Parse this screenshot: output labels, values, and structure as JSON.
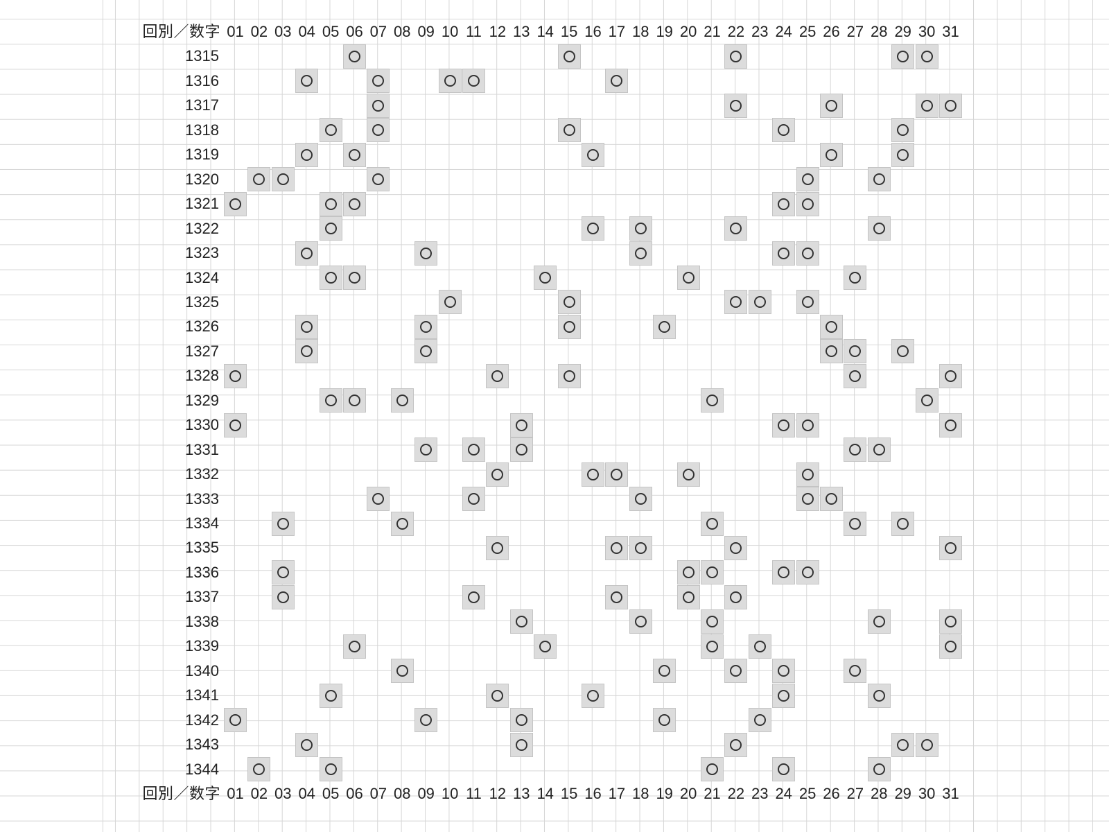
{
  "sheet": {
    "header_label": "回別／数字",
    "footer_label": "回別／数字",
    "columns": [
      "01",
      "02",
      "03",
      "04",
      "05",
      "06",
      "07",
      "08",
      "09",
      "10",
      "11",
      "12",
      "13",
      "14",
      "15",
      "16",
      "17",
      "18",
      "19",
      "20",
      "21",
      "22",
      "23",
      "24",
      "25",
      "26",
      "27",
      "28",
      "29",
      "30",
      "31"
    ],
    "mark_symbol": "circle",
    "colors": {
      "grid": "#d6d6d6",
      "marked_cell": "#dcdcdc",
      "mark": "#333333",
      "text": "#222222"
    },
    "rows": [
      {
        "draw": "1315",
        "numbers": [
          "06",
          "15",
          "22",
          "29",
          "30"
        ]
      },
      {
        "draw": "1316",
        "numbers": [
          "04",
          "07",
          "10",
          "11",
          "17"
        ]
      },
      {
        "draw": "1317",
        "numbers": [
          "07",
          "22",
          "26",
          "30",
          "31"
        ]
      },
      {
        "draw": "1318",
        "numbers": [
          "05",
          "07",
          "15",
          "24",
          "29"
        ]
      },
      {
        "draw": "1319",
        "numbers": [
          "04",
          "06",
          "16",
          "26",
          "29"
        ]
      },
      {
        "draw": "1320",
        "numbers": [
          "02",
          "03",
          "07",
          "25",
          "28"
        ]
      },
      {
        "draw": "1321",
        "numbers": [
          "01",
          "05",
          "06",
          "24",
          "25"
        ]
      },
      {
        "draw": "1322",
        "numbers": [
          "05",
          "16",
          "18",
          "22",
          "28"
        ]
      },
      {
        "draw": "1323",
        "numbers": [
          "04",
          "09",
          "18",
          "24",
          "25"
        ]
      },
      {
        "draw": "1324",
        "numbers": [
          "05",
          "06",
          "14",
          "20",
          "27"
        ]
      },
      {
        "draw": "1325",
        "numbers": [
          "10",
          "15",
          "22",
          "23",
          "25"
        ]
      },
      {
        "draw": "1326",
        "numbers": [
          "04",
          "09",
          "15",
          "19",
          "26"
        ]
      },
      {
        "draw": "1327",
        "numbers": [
          "04",
          "09",
          "26",
          "27",
          "29"
        ]
      },
      {
        "draw": "1328",
        "numbers": [
          "01",
          "12",
          "15",
          "27",
          "31"
        ]
      },
      {
        "draw": "1329",
        "numbers": [
          "05",
          "06",
          "08",
          "21",
          "30"
        ]
      },
      {
        "draw": "1330",
        "numbers": [
          "01",
          "13",
          "24",
          "25",
          "31"
        ]
      },
      {
        "draw": "1331",
        "numbers": [
          "09",
          "11",
          "13",
          "27",
          "28"
        ]
      },
      {
        "draw": "1332",
        "numbers": [
          "12",
          "16",
          "17",
          "20",
          "25"
        ]
      },
      {
        "draw": "1333",
        "numbers": [
          "07",
          "11",
          "18",
          "25",
          "26"
        ]
      },
      {
        "draw": "1334",
        "numbers": [
          "03",
          "08",
          "21",
          "27",
          "29"
        ]
      },
      {
        "draw": "1335",
        "numbers": [
          "12",
          "17",
          "18",
          "22",
          "31"
        ]
      },
      {
        "draw": "1336",
        "numbers": [
          "03",
          "20",
          "21",
          "24",
          "25"
        ]
      },
      {
        "draw": "1337",
        "numbers": [
          "03",
          "11",
          "17",
          "20",
          "22"
        ]
      },
      {
        "draw": "1338",
        "numbers": [
          "13",
          "18",
          "21",
          "28",
          "31"
        ]
      },
      {
        "draw": "1339",
        "numbers": [
          "06",
          "14",
          "21",
          "23",
          "31"
        ]
      },
      {
        "draw": "1340",
        "numbers": [
          "08",
          "19",
          "22",
          "24",
          "27"
        ]
      },
      {
        "draw": "1341",
        "numbers": [
          "05",
          "12",
          "16",
          "24",
          "28"
        ]
      },
      {
        "draw": "1342",
        "numbers": [
          "01",
          "09",
          "13",
          "19",
          "23"
        ]
      },
      {
        "draw": "1343",
        "numbers": [
          "04",
          "13",
          "22",
          "29",
          "30"
        ]
      },
      {
        "draw": "1344",
        "numbers": [
          "02",
          "05",
          "21",
          "24",
          "28"
        ]
      }
    ]
  }
}
